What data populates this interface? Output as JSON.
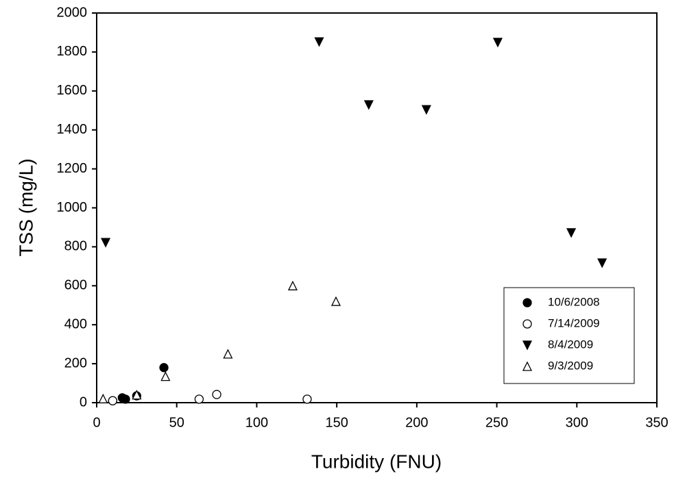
{
  "chart_data": {
    "type": "scatter",
    "x_label": "Turbidity (FNU)",
    "y_label": "TSS (mg/L)",
    "xlim": [
      0,
      350
    ],
    "xticks": [
      0,
      50,
      100,
      150,
      200,
      250,
      300,
      350
    ],
    "ylim": [
      0,
      2000
    ],
    "yticks": [
      0,
      200,
      400,
      600,
      800,
      1000,
      1200,
      1400,
      1600,
      1800,
      2000
    ],
    "legend": "lower right",
    "series": [
      {
        "name": "10/6/2008",
        "color": "#000000",
        "marker": "circle",
        "filled": true,
        "x": [
          10,
          16,
          18,
          25,
          42
        ],
        "values": [
          10,
          25,
          18,
          35,
          180
        ]
      },
      {
        "name": "7/14/2009",
        "color": "#000000",
        "marker": "circle",
        "filled": false,
        "x": [
          10,
          64,
          75,
          131.5
        ],
        "values": [
          10,
          18,
          42,
          18
        ]
      },
      {
        "name": "8/4/2009",
        "color": "#000000",
        "marker": "triangle-down",
        "filled": true,
        "x": [
          5.6,
          139,
          170,
          206,
          250.6,
          296.5,
          315.8
        ],
        "values": [
          822,
          1852,
          1529,
          1504,
          1849,
          872,
          717
        ]
      },
      {
        "name": "9/3/2009",
        "color": "#000000",
        "marker": "triangle-up",
        "filled": false,
        "x": [
          4,
          25,
          43,
          82,
          122.5,
          149.5
        ],
        "values": [
          20,
          40,
          135,
          250,
          600,
          520
        ]
      }
    ]
  }
}
